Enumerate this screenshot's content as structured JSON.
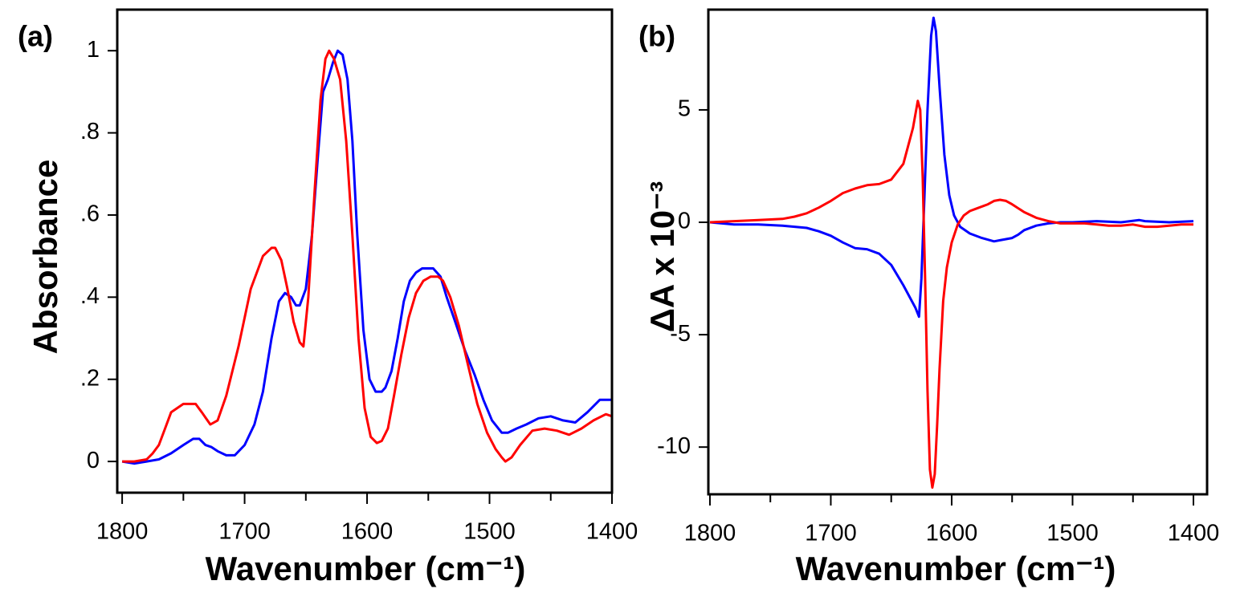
{
  "chart_data": [
    {
      "type": "line",
      "panel_label": "(a)",
      "ylabel": "Absorbance",
      "xlabel": "Wavenumber (cm⁻¹)",
      "xlim": [
        1804,
        1400
      ],
      "ylim": [
        -0.076,
        1.1
      ],
      "xticks": [
        1800,
        1700,
        1600,
        1500,
        1400
      ],
      "x_minor_ticks": [
        1750,
        1650,
        1550,
        1450
      ],
      "yticks": [
        0,
        {
          "value": 0.2,
          "label": ".2"
        },
        {
          "value": 0.4,
          "label": ".4"
        },
        {
          "value": 0.6,
          "label": ".6"
        },
        {
          "value": 0.8,
          "label": ".8"
        },
        1
      ],
      "series": [
        {
          "color": "#0000ff",
          "x": [
            1800,
            1790,
            1780,
            1770,
            1760,
            1750,
            1742,
            1737,
            1732,
            1727,
            1722,
            1715,
            1708,
            1700,
            1692,
            1685,
            1678,
            1672,
            1667,
            1662,
            1658,
            1655,
            1650,
            1645,
            1640,
            1636,
            1632,
            1628,
            1624,
            1620,
            1616,
            1612,
            1608,
            1603,
            1598,
            1593,
            1588,
            1585,
            1580,
            1575,
            1570,
            1565,
            1560,
            1555,
            1550,
            1546,
            1540,
            1535,
            1528,
            1520,
            1512,
            1505,
            1498,
            1490,
            1485,
            1478,
            1470,
            1460,
            1450,
            1440,
            1430,
            1420,
            1410,
            1400
          ],
          "values": [
            0,
            -0.005,
            0,
            0.005,
            0.02,
            0.04,
            0.055,
            0.055,
            0.04,
            0.035,
            0.025,
            0.015,
            0.015,
            0.04,
            0.09,
            0.17,
            0.3,
            0.39,
            0.41,
            0.4,
            0.38,
            0.38,
            0.42,
            0.55,
            0.75,
            0.9,
            0.93,
            0.97,
            1.0,
            0.99,
            0.93,
            0.78,
            0.55,
            0.32,
            0.2,
            0.17,
            0.17,
            0.18,
            0.22,
            0.3,
            0.39,
            0.44,
            0.46,
            0.47,
            0.47,
            0.47,
            0.45,
            0.4,
            0.34,
            0.27,
            0.21,
            0.15,
            0.1,
            0.07,
            0.07,
            0.08,
            0.09,
            0.105,
            0.11,
            0.1,
            0.095,
            0.12,
            0.15,
            0.15
          ]
        },
        {
          "color": "#ff0000",
          "x": [
            1800,
            1790,
            1780,
            1775,
            1770,
            1765,
            1760,
            1750,
            1740,
            1735,
            1728,
            1722,
            1715,
            1705,
            1695,
            1685,
            1678,
            1675,
            1670,
            1665,
            1660,
            1655,
            1652,
            1648,
            1643,
            1638,
            1634,
            1631,
            1627,
            1622,
            1617,
            1612,
            1607,
            1602,
            1597,
            1592,
            1588,
            1583,
            1578,
            1572,
            1566,
            1560,
            1554,
            1548,
            1542,
            1538,
            1532,
            1525,
            1518,
            1510,
            1502,
            1495,
            1490,
            1487,
            1482,
            1475,
            1465,
            1455,
            1445,
            1435,
            1425,
            1415,
            1405,
            1400
          ],
          "values": [
            0,
            0,
            0.005,
            0.02,
            0.04,
            0.08,
            0.12,
            0.14,
            0.14,
            0.12,
            0.09,
            0.1,
            0.16,
            0.28,
            0.42,
            0.5,
            0.52,
            0.52,
            0.49,
            0.42,
            0.34,
            0.29,
            0.28,
            0.4,
            0.65,
            0.88,
            0.98,
            1.0,
            0.98,
            0.93,
            0.78,
            0.55,
            0.3,
            0.13,
            0.06,
            0.045,
            0.05,
            0.08,
            0.16,
            0.26,
            0.35,
            0.41,
            0.44,
            0.45,
            0.45,
            0.44,
            0.4,
            0.33,
            0.24,
            0.14,
            0.07,
            0.03,
            0.01,
            0,
            0.01,
            0.04,
            0.075,
            0.08,
            0.075,
            0.065,
            0.08,
            0.1,
            0.115,
            0.11
          ]
        }
      ]
    },
    {
      "type": "line",
      "panel_label": "(b)",
      "ylabel": "ΔA x 10⁻³",
      "xlabel": "Wavenumber (cm⁻¹)",
      "xlim": [
        1801.3,
        1388.7
      ],
      "ylim": [
        -12.1,
        9.46
      ],
      "xticks": [
        1800,
        1700,
        1600,
        1500,
        1400
      ],
      "x_minor_ticks": [
        1750,
        1650,
        1550,
        1450
      ],
      "yticks": [
        5,
        0,
        -5,
        -10
      ],
      "series": [
        {
          "color": "#0000ff",
          "x": [
            1800,
            1780,
            1760,
            1740,
            1720,
            1710,
            1700,
            1690,
            1680,
            1670,
            1660,
            1650,
            1640,
            1630,
            1627,
            1625,
            1623,
            1620,
            1617,
            1615,
            1613,
            1610,
            1606,
            1602,
            1598,
            1593,
            1585,
            1575,
            1565,
            1560,
            1550,
            1545,
            1540,
            1530,
            1520,
            1510,
            1500,
            1480,
            1460,
            1445,
            1440,
            1420,
            1400
          ],
          "values": [
            0,
            -0.1,
            -0.1,
            -0.15,
            -0.25,
            -0.4,
            -0.6,
            -0.9,
            -1.15,
            -1.2,
            -1.4,
            -1.9,
            -2.8,
            -3.8,
            -4.2,
            -2.5,
            0.5,
            5.0,
            8.3,
            9.1,
            8.5,
            6.0,
            3.0,
            1.2,
            0.3,
            -0.2,
            -0.5,
            -0.7,
            -0.85,
            -0.8,
            -0.7,
            -0.55,
            -0.35,
            -0.15,
            -0.05,
            0,
            0,
            0.05,
            0,
            0.1,
            0.05,
            0,
            0.05
          ]
        },
        {
          "color": "#ff0000",
          "x": [
            1800,
            1780,
            1760,
            1740,
            1730,
            1720,
            1710,
            1700,
            1690,
            1680,
            1670,
            1660,
            1650,
            1640,
            1632,
            1628,
            1626,
            1624,
            1622,
            1620,
            1618,
            1616,
            1614,
            1612,
            1610,
            1607,
            1604,
            1600,
            1595,
            1590,
            1585,
            1580,
            1570,
            1565,
            1560,
            1555,
            1550,
            1540,
            1530,
            1520,
            1510,
            1500,
            1490,
            1480,
            1470,
            1460,
            1450,
            1440,
            1430,
            1420,
            1410,
            1400
          ],
          "values": [
            0,
            0.05,
            0.1,
            0.15,
            0.25,
            0.4,
            0.65,
            0.95,
            1.3,
            1.5,
            1.65,
            1.7,
            1.9,
            2.6,
            4.2,
            5.4,
            5.0,
            2.0,
            -2.5,
            -7.5,
            -11.0,
            -11.8,
            -11.2,
            -9.0,
            -6.5,
            -3.5,
            -2.0,
            -0.9,
            -0.1,
            0.3,
            0.5,
            0.6,
            0.8,
            0.95,
            1.0,
            0.95,
            0.8,
            0.45,
            0.2,
            0.05,
            -0.05,
            -0.05,
            -0.05,
            -0.1,
            -0.15,
            -0.15,
            -0.1,
            -0.2,
            -0.2,
            -0.15,
            -0.1,
            -0.1
          ]
        }
      ]
    }
  ]
}
